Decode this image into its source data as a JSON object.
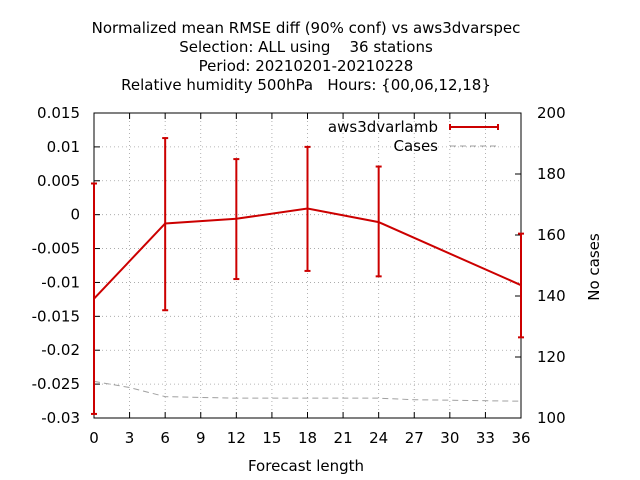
{
  "chart_data": {
    "type": "line",
    "title_lines": [
      "Normalized mean RMSE diff (90% conf) vs aws3dvarspec",
      "Selection: ALL using    36 stations",
      "Period: 20210201-20210228",
      "Relative humidity 500hPa   Hours: {00,06,12,18}"
    ],
    "xlabel": "Forecast length",
    "ylabel": "",
    "y2label": "No cases",
    "x": [
      0,
      6,
      12,
      18,
      24,
      36
    ],
    "xlim": [
      0,
      36
    ],
    "xticks": [
      0,
      3,
      6,
      9,
      12,
      15,
      18,
      21,
      24,
      27,
      30,
      33,
      36
    ],
    "ylim": [
      -0.03,
      0.015
    ],
    "yticks": [
      -0.03,
      -0.025,
      -0.02,
      -0.015,
      -0.01,
      -0.005,
      0,
      0.005,
      0.01,
      0.015
    ],
    "ytick_labels": [
      "-0.03",
      "-0.025",
      "-0.02",
      "-0.015",
      "-0.01",
      "-0.005",
      "0",
      "0.005",
      "0.01",
      "0.015"
    ],
    "y2lim": [
      100,
      200
    ],
    "y2ticks": [
      100,
      120,
      140,
      160,
      180,
      200
    ],
    "grid": true,
    "legend_position": "top-right",
    "series": [
      {
        "name": "aws3dvarlamb",
        "axis": "left",
        "color": "#cc0000",
        "values": [
          -0.0124,
          -0.0013,
          -0.0006,
          0.0009,
          -0.0011,
          -0.0104
        ],
        "err_low": [
          -0.0294,
          -0.0141,
          -0.0095,
          -0.0083,
          -0.0091,
          -0.0181
        ],
        "err_high": [
          0.0046,
          0.0113,
          0.0082,
          0.01,
          0.0071,
          -0.0028
        ]
      },
      {
        "name": "Cases",
        "axis": "right",
        "color": "#a0a0a0",
        "x": [
          0,
          3,
          6,
          12,
          18,
          24,
          27,
          36
        ],
        "values": [
          112,
          110,
          107,
          106.5,
          106.5,
          106.5,
          106,
          105.5
        ]
      }
    ]
  }
}
